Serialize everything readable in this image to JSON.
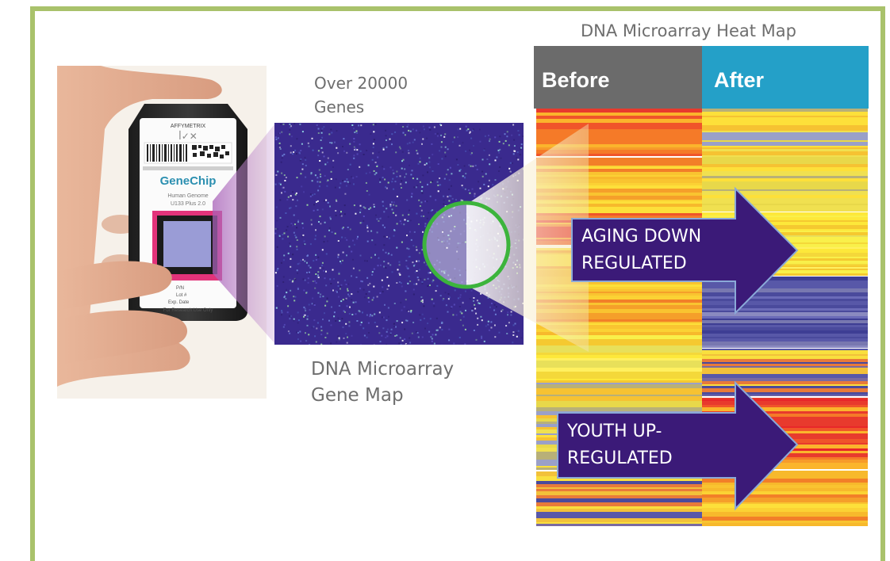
{
  "heatmap": {
    "title": "DNA Microarray Heat Map",
    "before_label": "Before",
    "after_label": "After",
    "before_color": "#6b6b6b",
    "after_color": "#24a0c8"
  },
  "genes_label_line1": "Over 20000",
  "genes_label_line2": "Genes",
  "gene_map_label_line1": "DNA Microarray",
  "gene_map_label_line2": "Gene Map",
  "chip": {
    "brand": "AFFYMETRIX",
    "name": "GeneChip",
    "subtitle_line1": "Human Genome",
    "subtitle_line2": "U133 Plus 2.0",
    "field_pn": "P/N",
    "field_lot": "Lot #",
    "field_exp": "Exp. Date",
    "footer": "For Research Use Only"
  },
  "arrows": {
    "aging_line1": "AGING DOWN",
    "aging_line2": "REGULATED",
    "youth_line1": "YOUTH UP-",
    "youth_line2": "REGULATED",
    "color": "#3b1a78"
  },
  "colors": {
    "frame": "#a9c26b",
    "ring": "#3cb43c"
  }
}
